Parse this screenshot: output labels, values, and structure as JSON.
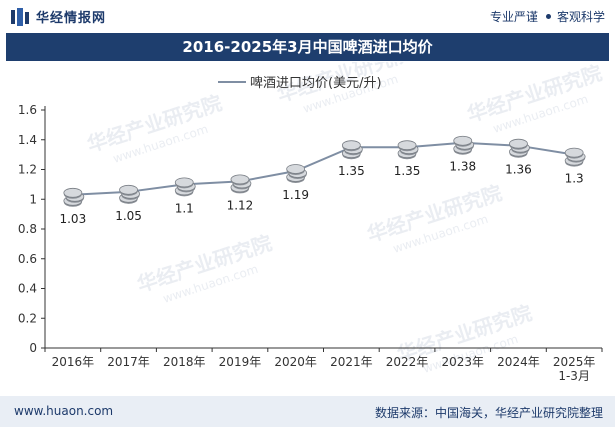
{
  "header": {
    "brand": "华经情报网",
    "tag1": "专业严谨",
    "tag2": "客观科学"
  },
  "watermark": {
    "text": "华经产业研究院",
    "url": "www.huaon.com"
  },
  "footer": {
    "url": "www.huaon.com",
    "source": "数据来源：中国海关，华经产业研究院整理"
  },
  "colors": {
    "line": "#7f8ea3",
    "title_bg": "#1e3e6e",
    "text": "#333333"
  },
  "chart_data": {
    "type": "line",
    "title": "2016-2025年3月中国啤酒进口均价",
    "legend": "啤酒进口均价(美元/升)",
    "legend_position": "top",
    "categories": [
      "2016年",
      "2017年",
      "2018年",
      "2019年",
      "2020年",
      "2021年",
      "2022年",
      "2023年",
      "2024年",
      "2025年\n1-3月"
    ],
    "series": [
      {
        "name": "啤酒进口均价(美元/升)",
        "values": [
          1.03,
          1.05,
          1.1,
          1.12,
          1.19,
          1.35,
          1.35,
          1.38,
          1.36,
          1.3
        ]
      }
    ],
    "data_labels": [
      "1.03",
      "1.05",
      "1.1",
      "1.12",
      "1.19",
      "1.35",
      "1.35",
      "1.38",
      "1.36",
      "1.3"
    ],
    "ylim": [
      0,
      1.6
    ],
    "yticks": [
      "0",
      "0.2",
      "0.4",
      "0.6",
      "0.8",
      "1",
      "1.2",
      "1.4",
      "1.6"
    ],
    "grid": false,
    "xlabel": "",
    "ylabel": ""
  }
}
